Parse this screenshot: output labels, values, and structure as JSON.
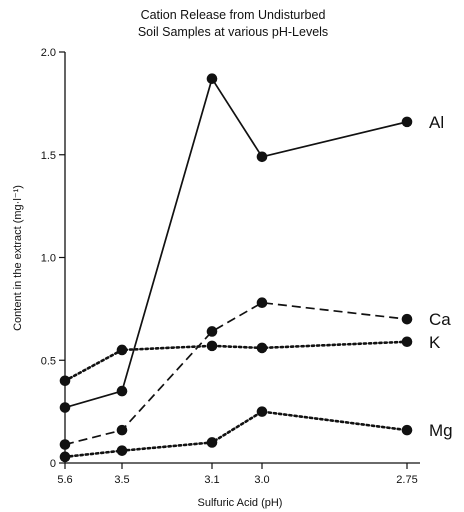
{
  "chart_data": {
    "type": "line",
    "title_lines": [
      "Cation Release from Undisturbed",
      "Soil Samples at various pH-Levels"
    ],
    "xlabel": "Sulfuric Acid (pH)",
    "ylabel": "Content in the extract (mg·l⁻¹)",
    "categories": [
      "5.6",
      "3.5",
      "3.1",
      "3.0",
      "2.75"
    ],
    "x_values": [
      5.6,
      3.5,
      3.1,
      3.0,
      2.75
    ],
    "x_axis_reversed": true,
    "ylim": [
      0,
      2.0
    ],
    "yticks": [
      0,
      0.5,
      1.0,
      1.5,
      2.0
    ],
    "ytick_labels": [
      "0",
      "0.5",
      "1.0",
      "1.5",
      "2.0"
    ],
    "grid": false,
    "series": [
      {
        "name": "Al",
        "line_style": "solid",
        "values": [
          0.27,
          0.35,
          1.87,
          1.49,
          1.66
        ]
      },
      {
        "name": "Ca",
        "line_style": "dashed",
        "values": [
          0.09,
          0.16,
          0.64,
          0.78,
          0.7
        ]
      },
      {
        "name": "K",
        "line_style": "dotted",
        "values": [
          0.4,
          0.55,
          0.57,
          0.56,
          0.59
        ]
      },
      {
        "name": "Mg",
        "line_style": "dotted",
        "values": [
          0.03,
          0.06,
          0.1,
          0.25,
          0.16
        ]
      }
    ]
  }
}
